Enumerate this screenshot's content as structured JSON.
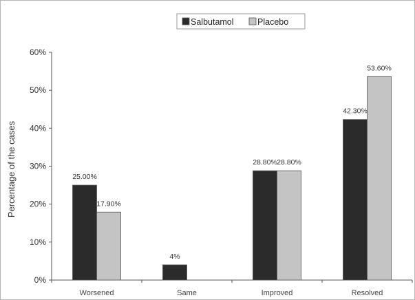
{
  "chart_data": {
    "type": "bar",
    "title": "",
    "xlabel": "",
    "ylabel": "Percentage of the cases",
    "categories": [
      "Worsened",
      "Same",
      "Improved",
      "Resolved"
    ],
    "series": [
      {
        "name": "Salbutamol",
        "color": "#2b2b2b",
        "values": [
          25.0,
          4.0,
          28.8,
          42.3
        ],
        "labels": [
          "25.00%",
          "4%",
          "28.80%",
          "42.30%"
        ]
      },
      {
        "name": "Placebo",
        "color": "#c4c4c4",
        "values": [
          17.9,
          0,
          28.8,
          53.6
        ],
        "labels": [
          "17.90%",
          "",
          "28.80%",
          "53.60%"
        ]
      }
    ],
    "ylim": [
      0,
      60
    ],
    "yticks": [
      "0%",
      "10%",
      "20%",
      "30%",
      "40%",
      "50%",
      "60%"
    ],
    "grid": false,
    "legend_position": "top-center"
  }
}
